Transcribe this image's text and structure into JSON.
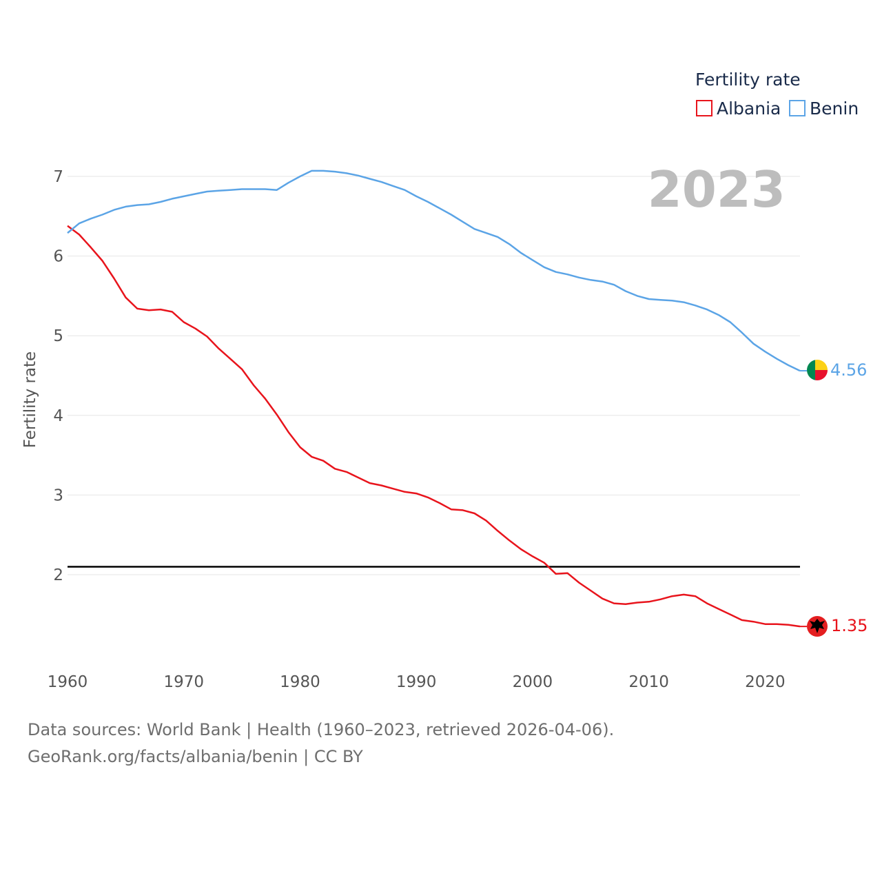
{
  "chart_data": {
    "type": "line",
    "title": "",
    "legend_title": "Fertility rate",
    "legend_position": "top-right",
    "ylabel": "Fertility rate",
    "xlabel": "",
    "year_label": "2023",
    "xlim": [
      1960,
      2023
    ],
    "ylim": [
      1,
      7.5
    ],
    "x_ticks": [
      1960,
      1970,
      1980,
      1990,
      2000,
      2010,
      2020
    ],
    "y_ticks": [
      2,
      3,
      4,
      5,
      6,
      7
    ],
    "reference_line": {
      "y": 2.1,
      "color": "#000000"
    },
    "x": [
      1960,
      1961,
      1962,
      1963,
      1964,
      1965,
      1966,
      1967,
      1968,
      1969,
      1970,
      1971,
      1972,
      1973,
      1974,
      1975,
      1976,
      1977,
      1978,
      1979,
      1980,
      1981,
      1982,
      1983,
      1984,
      1985,
      1986,
      1987,
      1988,
      1989,
      1990,
      1991,
      1992,
      1993,
      1994,
      1995,
      1996,
      1997,
      1998,
      1999,
      2000,
      2001,
      2002,
      2003,
      2004,
      2005,
      2006,
      2007,
      2008,
      2009,
      2010,
      2011,
      2012,
      2013,
      2014,
      2015,
      2016,
      2017,
      2018,
      2019,
      2020,
      2021,
      2022,
      2023
    ],
    "series": [
      {
        "name": "Albania",
        "color": "#e8141c",
        "end_label": "1.35",
        "values": [
          6.38,
          6.27,
          6.11,
          5.94,
          5.72,
          5.48,
          5.34,
          5.32,
          5.33,
          5.3,
          5.17,
          5.09,
          4.99,
          4.84,
          4.71,
          4.58,
          4.38,
          4.21,
          4.01,
          3.79,
          3.6,
          3.48,
          3.43,
          3.33,
          3.29,
          3.22,
          3.15,
          3.12,
          3.08,
          3.04,
          3.02,
          2.97,
          2.9,
          2.82,
          2.81,
          2.77,
          2.68,
          2.55,
          2.43,
          2.32,
          2.23,
          2.15,
          2.01,
          2.02,
          1.9,
          1.8,
          1.7,
          1.64,
          1.63,
          1.65,
          1.66,
          1.69,
          1.73,
          1.75,
          1.73,
          1.64,
          1.57,
          1.5,
          1.43,
          1.41,
          1.38,
          1.38,
          1.37,
          1.35
        ]
      },
      {
        "name": "Benin",
        "color": "#5ba4e6",
        "end_label": "4.56",
        "values": [
          6.29,
          6.41,
          6.47,
          6.52,
          6.58,
          6.62,
          6.64,
          6.65,
          6.68,
          6.72,
          6.75,
          6.78,
          6.81,
          6.82,
          6.83,
          6.84,
          6.84,
          6.84,
          6.83,
          6.92,
          7.0,
          7.07,
          7.07,
          7.06,
          7.04,
          7.01,
          6.97,
          6.93,
          6.88,
          6.83,
          6.75,
          6.68,
          6.6,
          6.52,
          6.43,
          6.34,
          6.29,
          6.24,
          6.15,
          6.04,
          5.95,
          5.86,
          5.8,
          5.77,
          5.73,
          5.7,
          5.68,
          5.64,
          5.56,
          5.5,
          5.46,
          5.45,
          5.44,
          5.42,
          5.38,
          5.33,
          5.26,
          5.17,
          5.04,
          4.9,
          4.8,
          4.71,
          4.63,
          4.56
        ]
      }
    ]
  },
  "footer": {
    "line1": "Data sources: World Bank | Health (1960–2023, retrieved 2026-04-06).",
    "line2": "GeoRank.org/facts/albania/benin | CC BY"
  },
  "icons": {
    "albania_flag": "albania-flag-icon",
    "benin_flag": "benin-flag-icon"
  },
  "flag_colors": {
    "albania_red": "#e41e20",
    "albania_eagle": "#000000",
    "benin_green": "#008751",
    "benin_yellow": "#fcd116",
    "benin_red": "#e8112d"
  }
}
